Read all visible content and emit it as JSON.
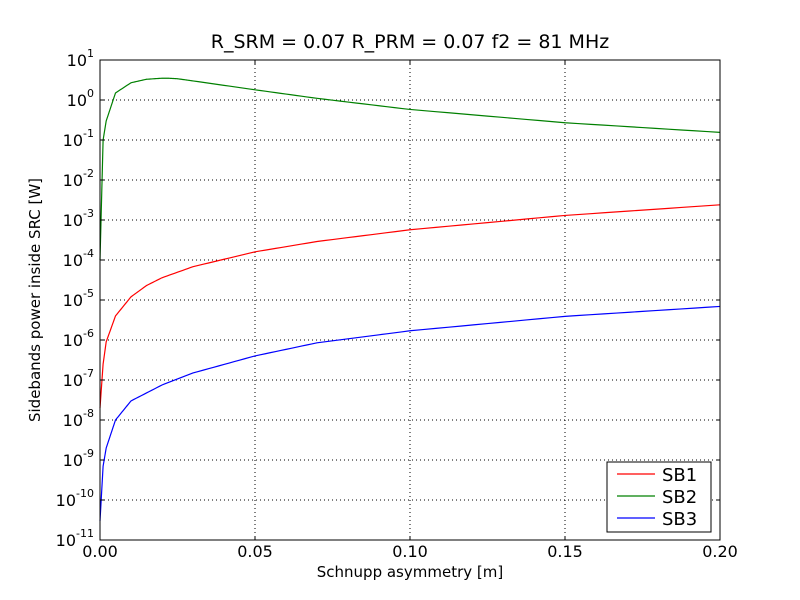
{
  "chart_data": {
    "type": "line",
    "title": "R_SRM = 0.07 R_PRM = 0.07   f2 = 81 MHz",
    "xlabel": "Schnupp asymmetry [m]",
    "ylabel": "Sidebands power inside SRC [W]",
    "xlim": [
      0.0,
      0.2
    ],
    "ylim_log10": [
      -11,
      1
    ],
    "yscale": "log",
    "grid": true,
    "legend_position": "lower-right",
    "x_ticks": [
      "0.00",
      "0.05",
      "0.10",
      "0.15",
      "0.20"
    ],
    "y_tick_base": "10",
    "y_tick_exponents": [
      "1",
      "0",
      "-1",
      "-2",
      "-3",
      "-4",
      "-5",
      "-6",
      "-7",
      "-8",
      "-9",
      "-10",
      "-11"
    ],
    "series": [
      {
        "name": "SB1",
        "color": "#ff0000",
        "x": [
          0.0,
          0.001,
          0.002,
          0.005,
          0.01,
          0.015,
          0.02,
          0.03,
          0.05,
          0.07,
          0.1,
          0.15,
          0.2
        ],
        "y": [
          2e-08,
          2.5e-07,
          9e-07,
          4e-06,
          1.2e-05,
          2.3e-05,
          3.6e-05,
          6.8e-05,
          0.00016,
          0.00029,
          0.00057,
          0.0013,
          0.0024
        ]
      },
      {
        "name": "SB2",
        "color": "#008000",
        "x": [
          0.0,
          0.001,
          0.002,
          0.005,
          0.01,
          0.015,
          0.02,
          0.022,
          0.025,
          0.03,
          0.05,
          0.07,
          0.1,
          0.15,
          0.2
        ],
        "y": [
          0.0001,
          0.1,
          0.3,
          1.5,
          2.7,
          3.3,
          3.5,
          3.5,
          3.4,
          3.0,
          1.8,
          1.1,
          0.58,
          0.27,
          0.155
        ]
      },
      {
        "name": "SB3",
        "color": "#0000ff",
        "x": [
          0.0,
          0.001,
          0.002,
          0.005,
          0.01,
          0.02,
          0.03,
          0.05,
          0.07,
          0.1,
          0.15,
          0.2
        ],
        "y": [
          3e-11,
          7e-10,
          2e-09,
          1e-08,
          3e-08,
          7.5e-08,
          1.5e-07,
          4e-07,
          8.5e-07,
          1.7e-06,
          3.9e-06,
          6.9e-06
        ]
      }
    ]
  }
}
